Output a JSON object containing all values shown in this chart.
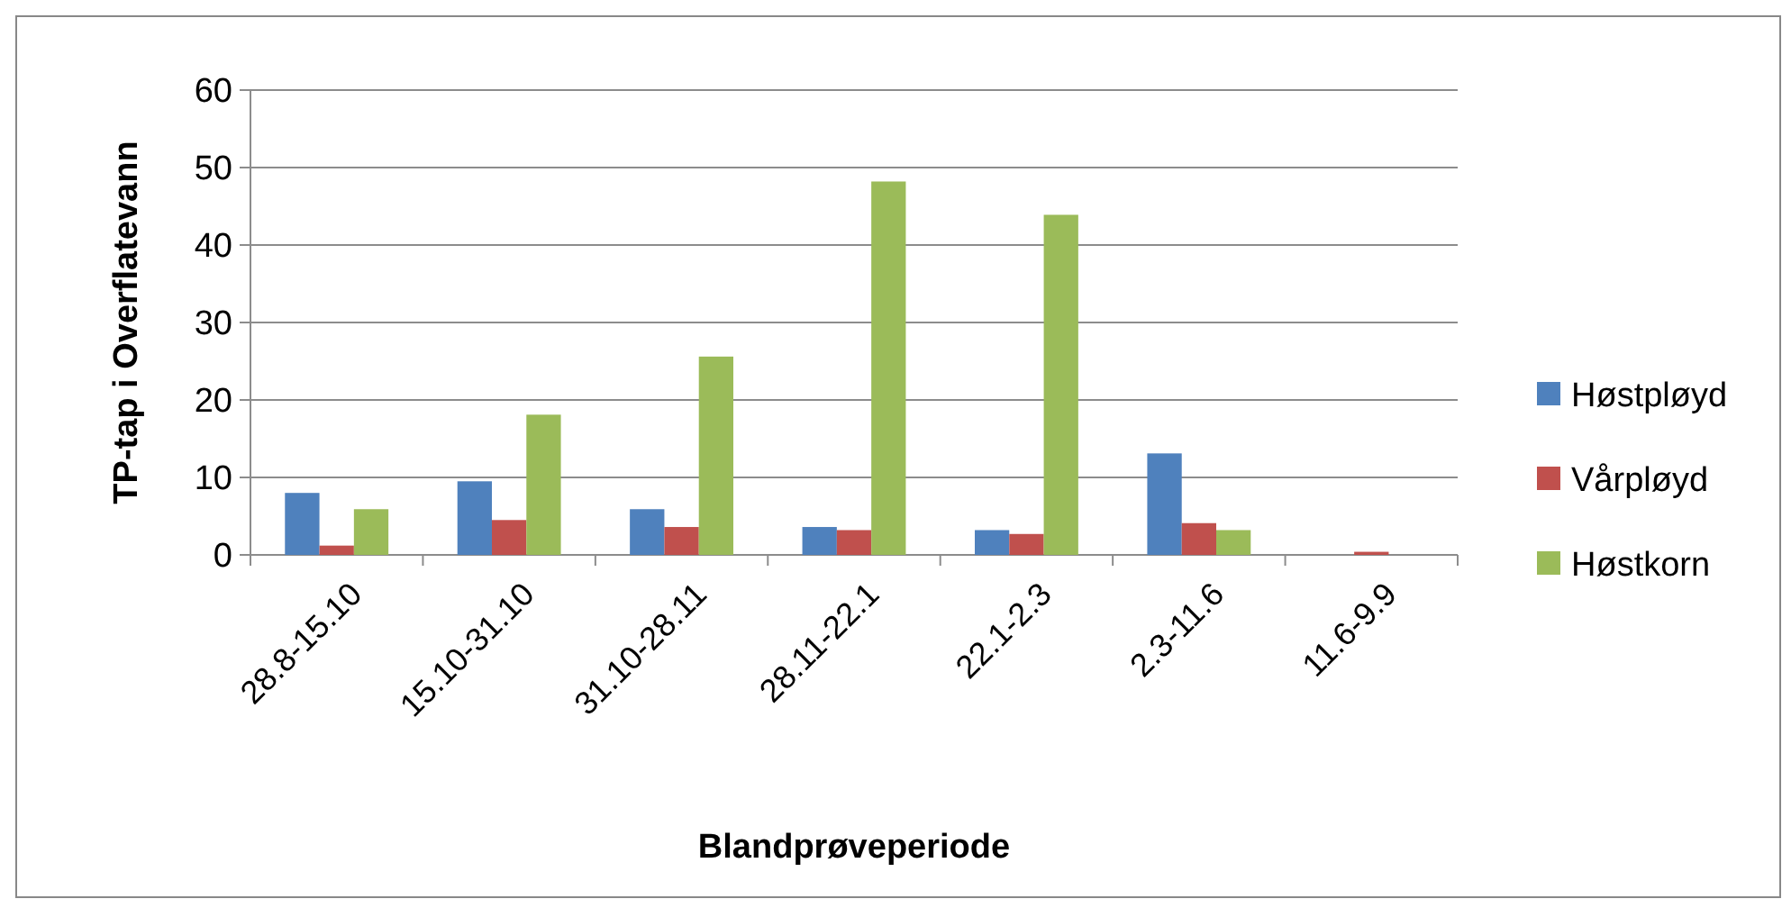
{
  "chart_data": {
    "type": "bar",
    "xlabel": "Blandprøveperiode",
    "ylabel": "TP-tap i Overflatevann",
    "categories": [
      "28.8-15.10",
      "15.10-31.10",
      "31.10-28.11",
      "28.11-22.1",
      "22.1-2.3",
      "2.3-11.6",
      "11.6-9.9"
    ],
    "series": [
      {
        "name": "Høstpløyd",
        "color": "#4f81bd",
        "values": [
          8.0,
          9.5,
          5.9,
          3.6,
          3.2,
          13.1,
          0
        ]
      },
      {
        "name": "Vårpløyd",
        "color": "#c0504d",
        "values": [
          1.2,
          4.5,
          3.6,
          3.2,
          2.7,
          4.1,
          0.4
        ]
      },
      {
        "name": "Høstkorn",
        "color": "#9bbb59",
        "values": [
          5.9,
          18.1,
          25.6,
          48.2,
          43.9,
          3.2,
          0
        ]
      }
    ],
    "ylim": [
      0,
      60
    ],
    "yticks": [
      0,
      10,
      20,
      30,
      40,
      50,
      60
    ],
    "grid": "y",
    "legend": "right"
  }
}
